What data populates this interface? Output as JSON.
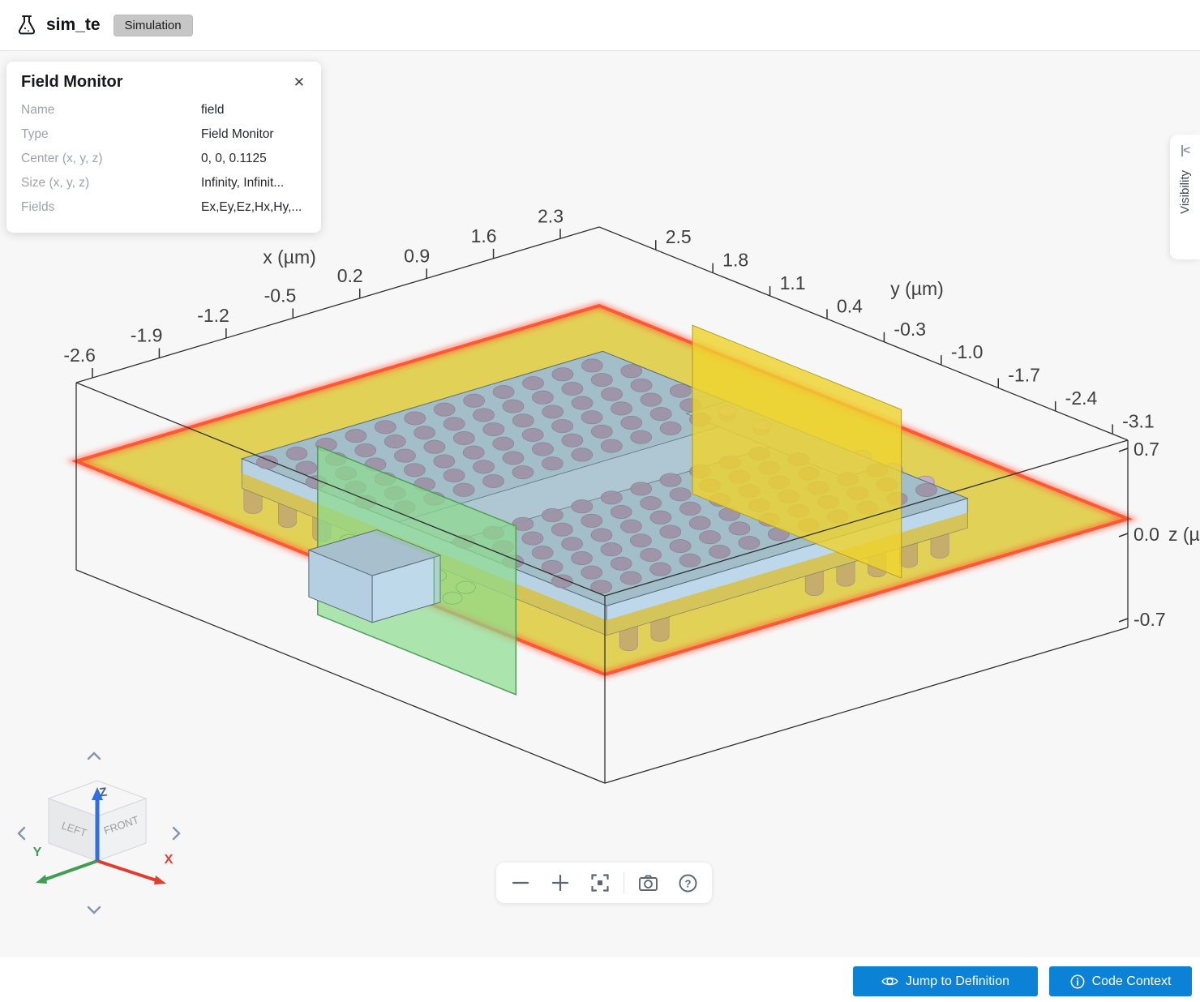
{
  "header": {
    "title": "sim_te",
    "badge": "Simulation"
  },
  "panel": {
    "title": "Field Monitor",
    "close_icon": "✕",
    "rows": [
      {
        "label": "Name",
        "value": "field"
      },
      {
        "label": "Type",
        "value": "Field Monitor"
      },
      {
        "label": "Center (x, y, z)",
        "value": "0, 0, 0.1125"
      },
      {
        "label": "Size (x, y, z)",
        "value": "Infinity, Infinit..."
      },
      {
        "label": "Fields",
        "value": "Ex,Ey,Ez,Hx,Hy,..."
      }
    ]
  },
  "visibility_tab": {
    "label": "Visibility",
    "collapse_icon": "|<"
  },
  "axes": {
    "x": {
      "label": "x (µm)",
      "ticks": [
        "-2.6",
        "-1.9",
        "-1.2",
        "-0.5",
        "0.2",
        "0.9",
        "1.6",
        "2.3"
      ]
    },
    "y": {
      "label": "y (µm)",
      "ticks": [
        "2.5",
        "1.8",
        "1.1",
        "0.4",
        "-0.3",
        "-1.0",
        "-1.7",
        "-2.4",
        "-3.1"
      ]
    },
    "z": {
      "label": "z (µm)",
      "ticks": [
        "0.7",
        "0.0",
        "-0.7"
      ]
    }
  },
  "view_cube": {
    "left_face": "LEFT",
    "front_face": "FRONT",
    "top_face": "Z",
    "axis_x": "X",
    "axis_y": "Y",
    "axis_z": "Z"
  },
  "actions": {
    "jump": "Jump to Definition",
    "code": "Code Context"
  },
  "colors": {
    "accent_blue": "#0b82d5",
    "plane_yellow": "#dcc629",
    "plane_glow": "#ff5233",
    "mode_green": "#8bdb8d",
    "flux_yellow": "#eed32f",
    "slab_top": "#a2bec9",
    "slab_side": "#b7d2e3",
    "hole": "#9e93a6",
    "wire": "#303030"
  }
}
